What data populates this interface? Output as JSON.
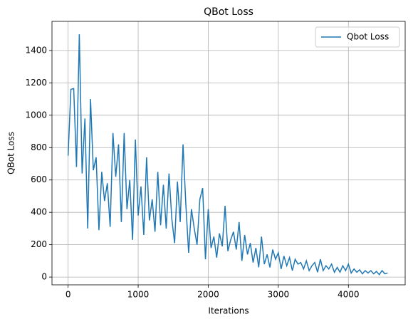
{
  "chart_data": {
    "type": "line",
    "title": "QBot Loss",
    "xlabel": "Iterations",
    "ylabel": "QBot Loss",
    "x": [
      0,
      40,
      80,
      120,
      160,
      200,
      240,
      280,
      320,
      360,
      400,
      440,
      480,
      520,
      560,
      600,
      640,
      680,
      720,
      760,
      800,
      840,
      880,
      920,
      960,
      1000,
      1040,
      1080,
      1120,
      1160,
      1200,
      1240,
      1280,
      1320,
      1360,
      1400,
      1440,
      1480,
      1520,
      1560,
      1600,
      1640,
      1680,
      1720,
      1760,
      1800,
      1840,
      1880,
      1920,
      1960,
      2000,
      2040,
      2080,
      2120,
      2160,
      2200,
      2240,
      2280,
      2320,
      2360,
      2400,
      2440,
      2480,
      2520,
      2560,
      2600,
      2640,
      2680,
      2720,
      2760,
      2800,
      2840,
      2880,
      2920,
      2960,
      3000,
      3040,
      3080,
      3120,
      3160,
      3200,
      3240,
      3280,
      3320,
      3360,
      3400,
      3440,
      3480,
      3520,
      3560,
      3600,
      3640,
      3680,
      3720,
      3760,
      3800,
      3840,
      3880,
      3920,
      3960,
      4000,
      4040,
      4080,
      4120,
      4160,
      4200,
      4240,
      4280,
      4320,
      4360,
      4400,
      4440,
      4480,
      4520,
      4560
    ],
    "series": [
      {
        "name": "Qbot Loss",
        "color": "#1f77b4",
        "values": [
          750,
          1160,
          1165,
          680,
          1500,
          640,
          980,
          300,
          1100,
          660,
          740,
          290,
          650,
          470,
          580,
          310,
          890,
          620,
          820,
          340,
          890,
          420,
          600,
          230,
          850,
          380,
          560,
          260,
          740,
          350,
          480,
          280,
          650,
          320,
          570,
          300,
          640,
          360,
          210,
          590,
          340,
          820,
          450,
          150,
          420,
          300,
          200,
          480,
          550,
          110,
          420,
          180,
          250,
          120,
          270,
          190,
          440,
          160,
          230,
          280,
          170,
          340,
          100,
          260,
          140,
          210,
          90,
          180,
          60,
          250,
          80,
          140,
          60,
          170,
          110,
          150,
          50,
          130,
          70,
          120,
          40,
          110,
          80,
          90,
          50,
          100,
          40,
          70,
          90,
          30,
          110,
          40,
          70,
          50,
          80,
          30,
          60,
          30,
          70,
          40,
          80,
          25,
          50,
          30,
          45,
          20,
          40,
          25,
          40,
          20,
          35,
          15,
          40,
          20,
          25
        ]
      }
    ],
    "xlim": [
      -230,
      4810
    ],
    "ylim": [
      -48,
      1580
    ],
    "xticks": [
      0,
      1000,
      2000,
      3000,
      4000
    ],
    "yticks": [
      0,
      200,
      400,
      600,
      800,
      1000,
      1200,
      1400
    ],
    "grid": true,
    "legend": "upper right"
  }
}
